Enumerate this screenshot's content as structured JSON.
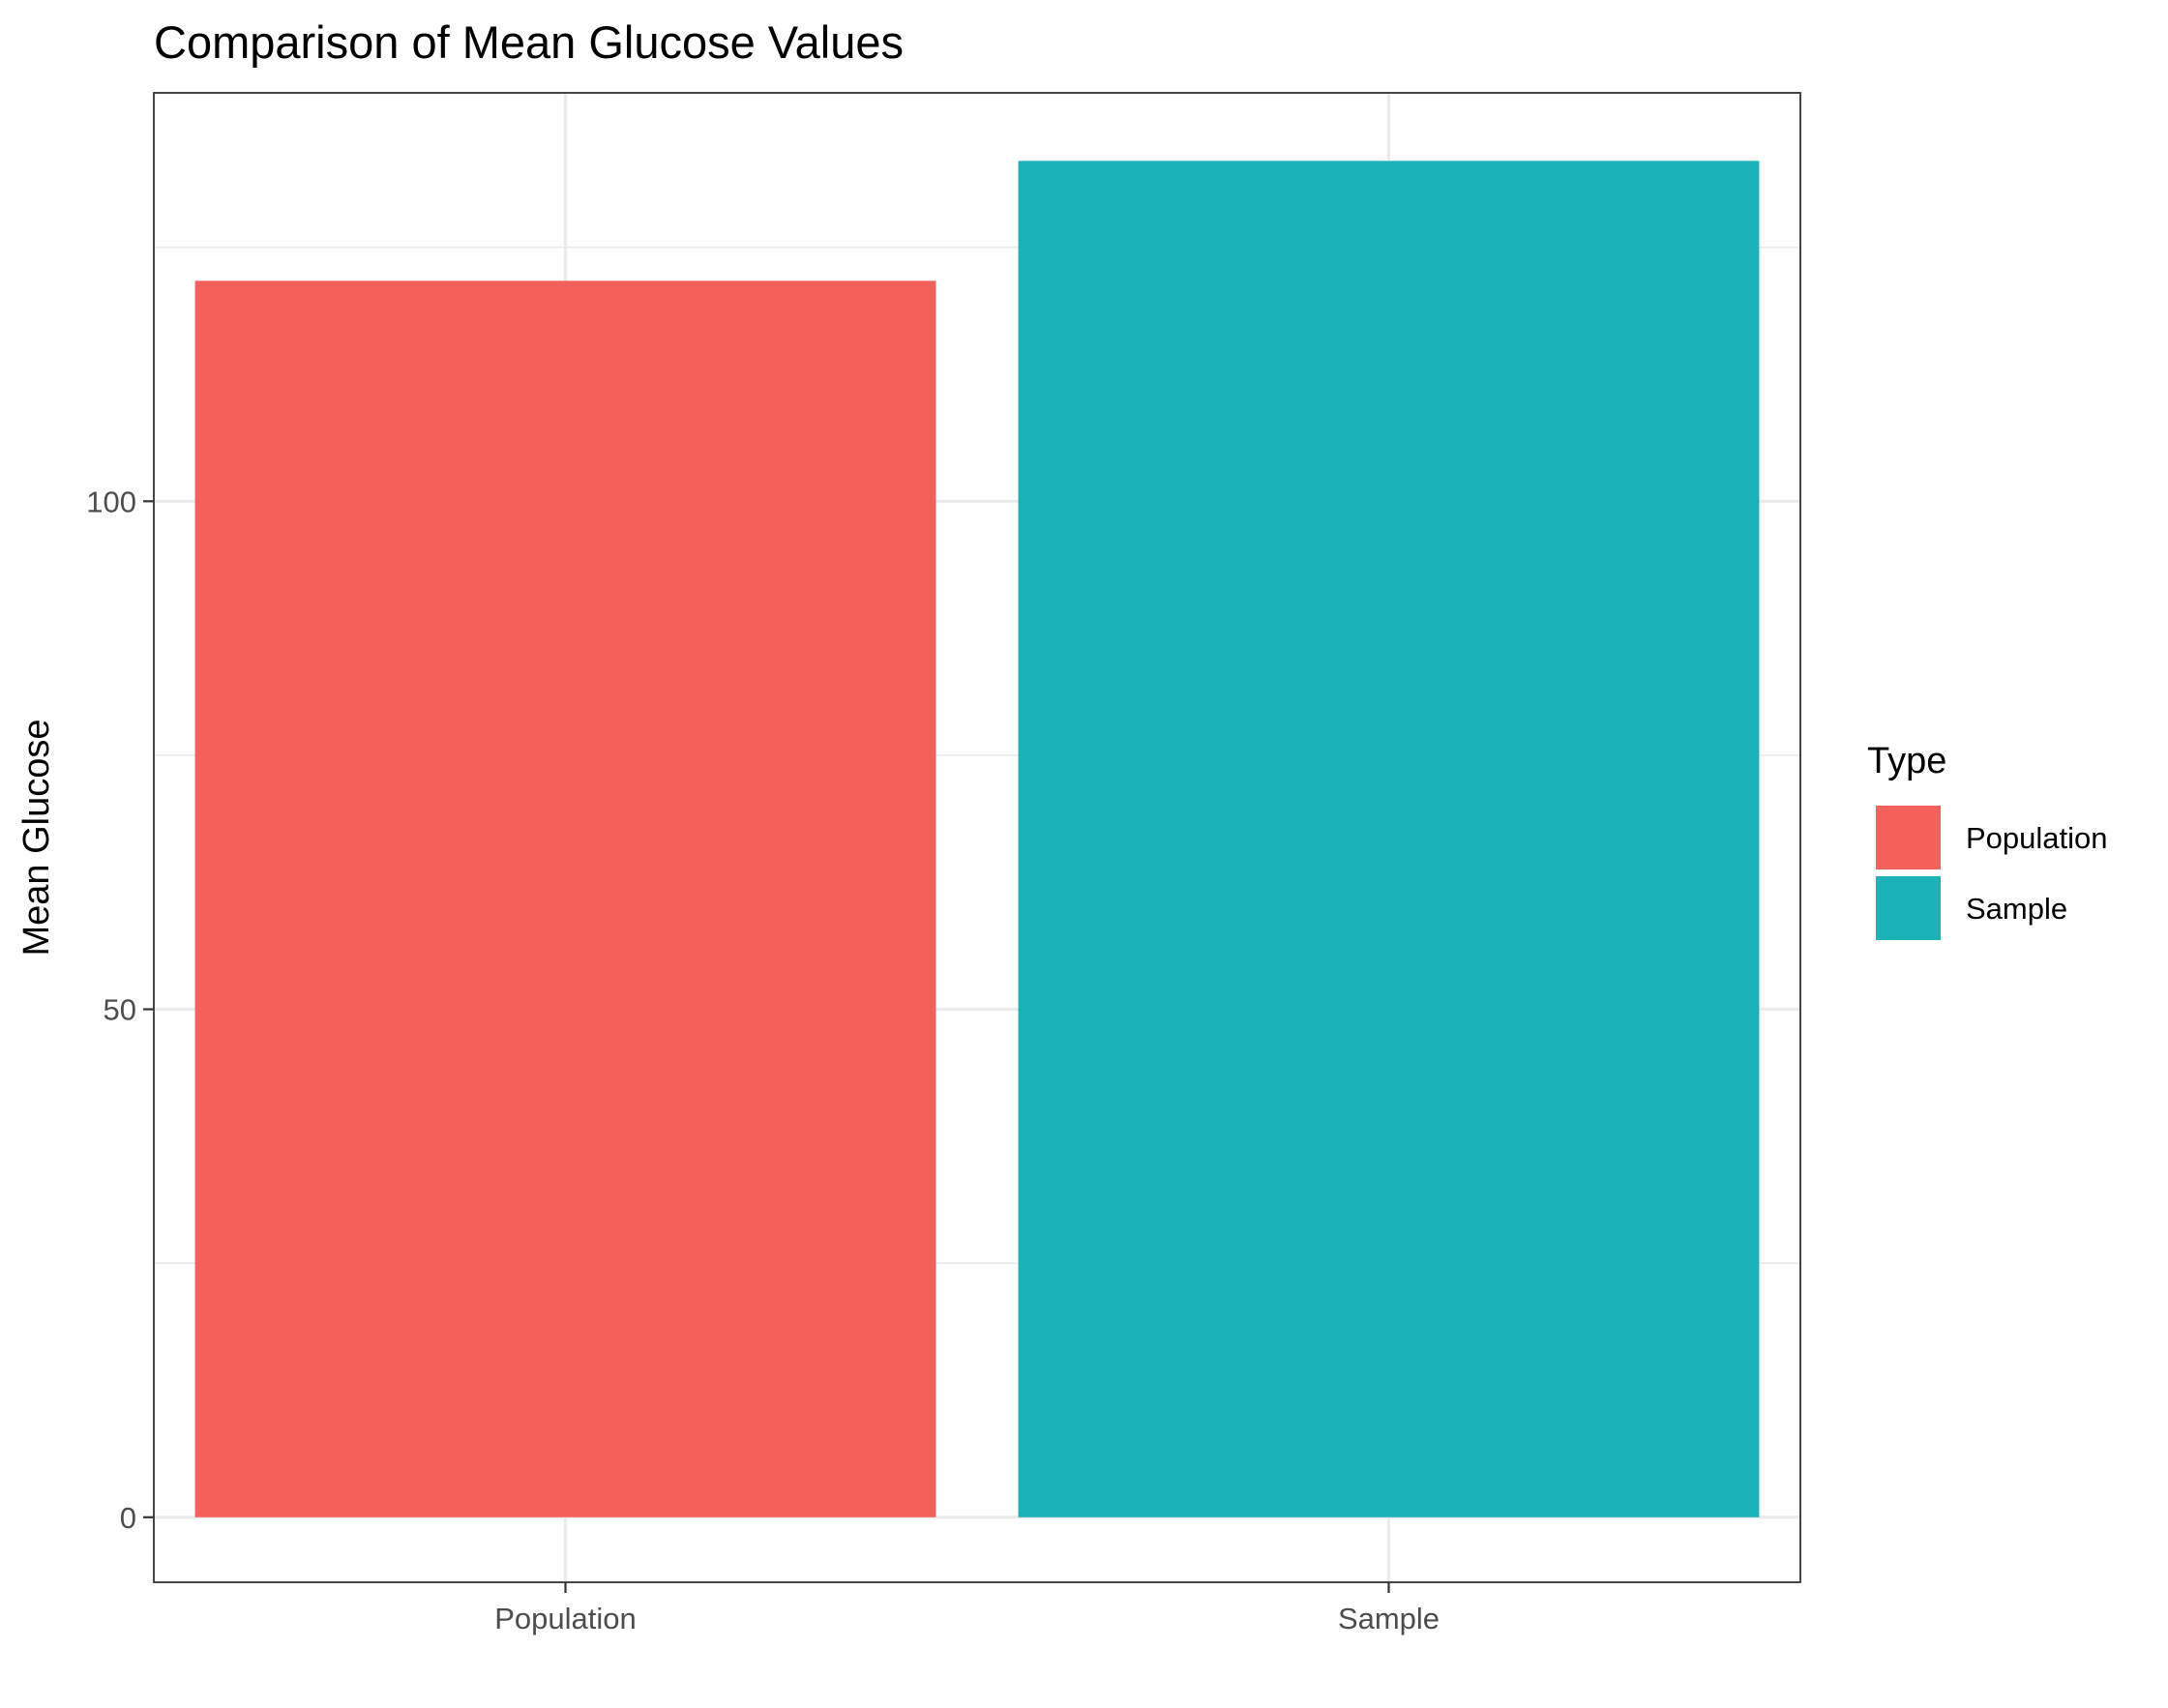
{
  "chart_data": {
    "type": "bar",
    "title": "Comparison of Mean Glucose Values",
    "xlabel": "",
    "ylabel": "Mean Glucose",
    "categories": [
      "Population",
      "Sample"
    ],
    "values": [
      121.7,
      133.5
    ],
    "colors": [
      "#F4605C",
      "#1AB3B8"
    ],
    "ylim": [
      -6.4,
      140.2
    ],
    "yticks": [
      0,
      50,
      100
    ],
    "grid": true,
    "legend": {
      "title": "Type",
      "placement": "right",
      "entries": [
        {
          "label": "Population",
          "color": "#F4605C"
        },
        {
          "label": "Sample",
          "color": "#1AB3B8"
        }
      ]
    }
  }
}
